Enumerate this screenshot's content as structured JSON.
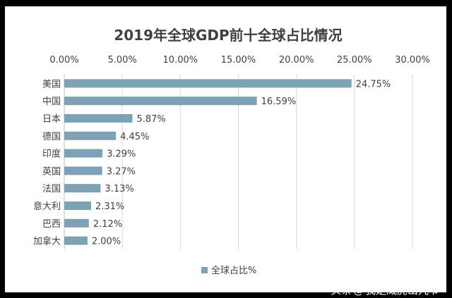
{
  "chart_data": {
    "type": "bar",
    "orientation": "horizontal",
    "title": "2019年全球GDP前十全球占比情况",
    "categories": [
      "美国",
      "中国",
      "日本",
      "德国",
      "印度",
      "英国",
      "法国",
      "意大利",
      "巴西",
      "加拿大"
    ],
    "series": [
      {
        "name": "全球占比%",
        "values": [
          24.75,
          16.59,
          5.87,
          4.45,
          3.29,
          3.27,
          3.13,
          2.31,
          2.12,
          2.0
        ],
        "data_labels": [
          "24.75%",
          "16.59%",
          "5.87%",
          "4.45%",
          "3.29%",
          "3.27%",
          "3.13%",
          "2.31%",
          "2.12%",
          "2.00%"
        ],
        "color": "#7ca3b5"
      }
    ],
    "x_ticks": [
      0,
      5,
      10,
      15,
      20,
      25,
      30
    ],
    "x_tick_labels": [
      "0.00%",
      "5.00%",
      "10.00%",
      "15.00%",
      "20.00%",
      "25.00%",
      "30.00%"
    ],
    "xlim": [
      0,
      30
    ],
    "axis_position": "top",
    "grid": true,
    "legend_position": "bottom"
  },
  "watermark": {
    "prefix": "头条",
    "at": "@",
    "handle": "我是威虎山九爷"
  }
}
